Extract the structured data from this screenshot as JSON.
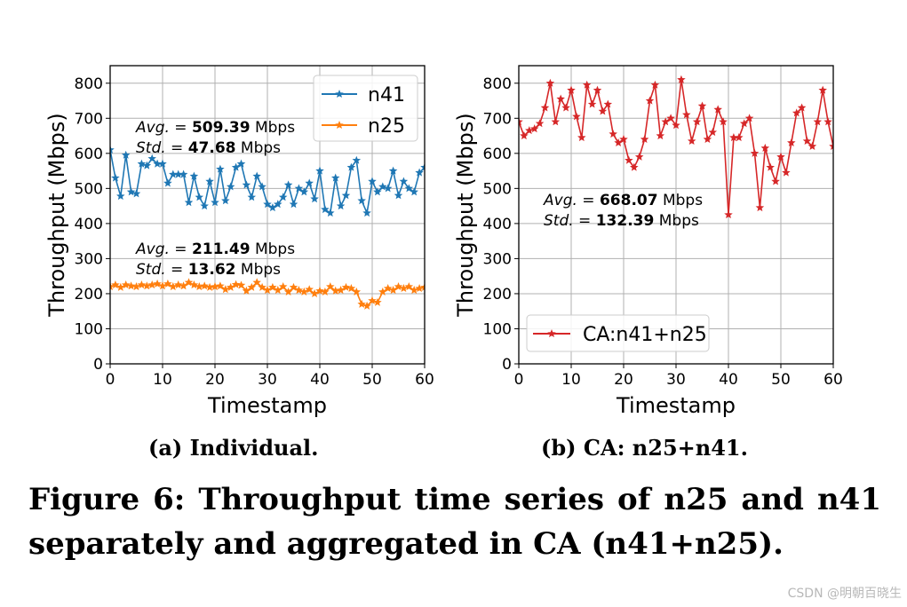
{
  "chart_data": [
    {
      "type": "line",
      "xlabel": "Timestamp",
      "ylabel": "Throughput (Mbps)",
      "xlim": [
        0,
        60
      ],
      "ylim": [
        0,
        850
      ],
      "xticks": [
        "0",
        "10",
        "20",
        "30",
        "40",
        "50",
        "60"
      ],
      "yticks": [
        "0",
        "100",
        "200",
        "300",
        "400",
        "500",
        "600",
        "700",
        "800"
      ],
      "grid": true,
      "legend_position": "top-right",
      "series": [
        {
          "name": "n41",
          "color": "#1f77b4",
          "marker": "star",
          "x": [
            0,
            1,
            2,
            3,
            4,
            5,
            6,
            7,
            8,
            9,
            10,
            11,
            12,
            13,
            14,
            15,
            16,
            17,
            18,
            19,
            20,
            21,
            22,
            23,
            24,
            25,
            26,
            27,
            28,
            29,
            30,
            31,
            32,
            33,
            34,
            35,
            36,
            37,
            38,
            39,
            40,
            41,
            42,
            43,
            44,
            45,
            46,
            47,
            48,
            49,
            50,
            51,
            52,
            53,
            54,
            55,
            56,
            57,
            58,
            59,
            60
          ],
          "values": [
            610,
            530,
            478,
            595,
            490,
            485,
            570,
            565,
            585,
            570,
            570,
            515,
            540,
            540,
            540,
            460,
            535,
            475,
            450,
            520,
            460,
            555,
            465,
            505,
            560,
            570,
            510,
            475,
            535,
            505,
            455,
            445,
            455,
            475,
            510,
            455,
            500,
            490,
            515,
            470,
            550,
            440,
            430,
            530,
            450,
            480,
            560,
            580,
            465,
            430,
            520,
            490,
            505,
            500,
            550,
            480,
            520,
            500,
            490,
            545,
            560
          ]
        },
        {
          "name": "n25",
          "color": "#ff7f0e",
          "marker": "star",
          "x": [
            0,
            1,
            2,
            3,
            4,
            5,
            6,
            7,
            8,
            9,
            10,
            11,
            12,
            13,
            14,
            15,
            16,
            17,
            18,
            19,
            20,
            21,
            22,
            23,
            24,
            25,
            26,
            27,
            28,
            29,
            30,
            31,
            32,
            33,
            34,
            35,
            36,
            37,
            38,
            39,
            40,
            41,
            42,
            43,
            44,
            45,
            46,
            47,
            48,
            49,
            50,
            51,
            52,
            53,
            54,
            55,
            56,
            57,
            58,
            59,
            60
          ],
          "values": [
            220,
            225,
            218,
            225,
            222,
            220,
            225,
            222,
            225,
            228,
            222,
            228,
            220,
            225,
            222,
            232,
            225,
            220,
            222,
            218,
            220,
            222,
            212,
            218,
            226,
            224,
            208,
            218,
            232,
            218,
            210,
            218,
            210,
            220,
            205,
            218,
            210,
            205,
            212,
            200,
            208,
            205,
            220,
            208,
            210,
            218,
            215,
            205,
            170,
            165,
            180,
            175,
            205,
            215,
            210,
            220,
            215,
            220,
            210,
            215,
            218
          ]
        }
      ],
      "annotations": [
        {
          "avg_label": "Avg.",
          "avg_value": "509.39",
          "std_label": "Std.",
          "std_value": "47.68",
          "unit": "Mbps"
        },
        {
          "avg_label": "Avg.",
          "avg_value": "211.49",
          "std_label": "Std.",
          "std_value": "13.62",
          "unit": "Mbps"
        }
      ]
    },
    {
      "type": "line",
      "xlabel": "Timestamp",
      "ylabel": "Throughput (Mbps)",
      "xlim": [
        0,
        60
      ],
      "ylim": [
        0,
        850
      ],
      "xticks": [
        "0",
        "10",
        "20",
        "30",
        "40",
        "50",
        "60"
      ],
      "yticks": [
        "0",
        "100",
        "200",
        "300",
        "400",
        "500",
        "600",
        "700",
        "800"
      ],
      "grid": true,
      "legend_position": "bottom-left",
      "series": [
        {
          "name": "CA:n41+n25",
          "color": "#d62728",
          "marker": "star",
          "x": [
            0,
            1,
            2,
            3,
            4,
            5,
            6,
            7,
            8,
            9,
            10,
            11,
            12,
            13,
            14,
            15,
            16,
            17,
            18,
            19,
            20,
            21,
            22,
            23,
            24,
            25,
            26,
            27,
            28,
            29,
            30,
            31,
            32,
            33,
            34,
            35,
            36,
            37,
            38,
            39,
            40,
            41,
            42,
            43,
            44,
            45,
            46,
            47,
            48,
            49,
            50,
            51,
            52,
            53,
            54,
            55,
            56,
            57,
            58,
            59,
            60
          ],
          "values": [
            690,
            650,
            665,
            670,
            685,
            730,
            800,
            690,
            755,
            730,
            780,
            705,
            645,
            795,
            740,
            780,
            720,
            740,
            655,
            630,
            640,
            580,
            560,
            590,
            640,
            750,
            795,
            650,
            690,
            700,
            680,
            810,
            710,
            635,
            690,
            735,
            640,
            660,
            725,
            690,
            425,
            645,
            645,
            685,
            700,
            600,
            445,
            615,
            560,
            520,
            590,
            545,
            630,
            715,
            730,
            635,
            620,
            690,
            780,
            690,
            620
          ]
        }
      ],
      "annotations": [
        {
          "avg_label": "Avg.",
          "avg_value": "668.07",
          "std_label": "Std.",
          "std_value": "132.39",
          "unit": "Mbps"
        }
      ]
    }
  ],
  "subcaptions": {
    "a_label": "(a)",
    "a_text": "Individual.",
    "b_label": "(b)",
    "b_text": "CA: n25+n41."
  },
  "caption": "Figure 6: Throughput time series of n25 and n41 separately and aggregated in CA (n41+n25).",
  "watermark": "CSDN @明朝百晓生"
}
